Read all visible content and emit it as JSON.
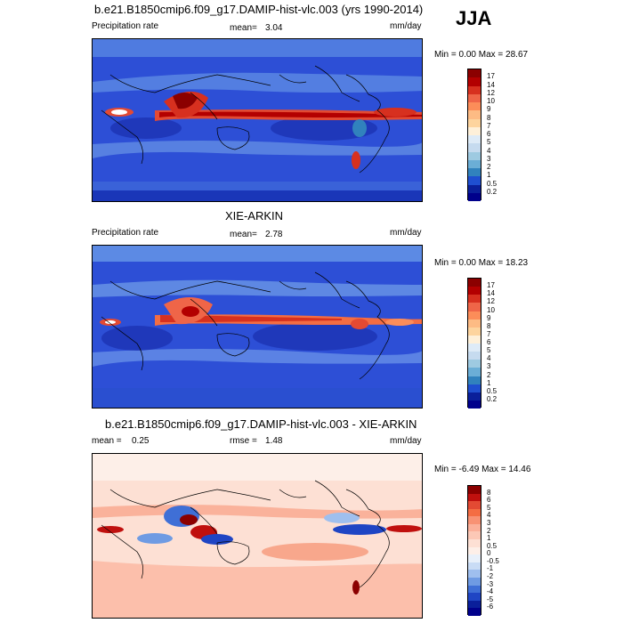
{
  "season": "JJA",
  "panels": [
    {
      "title": "b.e21.B1850cmip6.f09_g17.DAMIP-hist-vlc.003 (yrs 1990-2014)",
      "left_label": "Precipitation rate",
      "mean_label": "mean=",
      "mean_value": "3.04",
      "units": "mm/day",
      "minmax": "Min =   0.00 Max =  28.67",
      "colorbar": {
        "labels": [
          "17",
          "14",
          "12",
          "10",
          "9",
          "8",
          "7",
          "6",
          "5",
          "4",
          "3",
          "2",
          "1",
          "0.5",
          "0.2"
        ],
        "colors": [
          "#8b0000",
          "#b30000",
          "#d7301f",
          "#ef6548",
          "#fc8d59",
          "#fdbb84",
          "#fdd49e",
          "#fef0d9",
          "#deebf7",
          "#c6dbef",
          "#9ecae1",
          "#6baed6",
          "#3182bd",
          "#1f4fd0",
          "#0a1f9a",
          "#00008b"
        ]
      }
    },
    {
      "title": "XIE-ARKIN",
      "left_label": "Precipitation rate",
      "mean_label": "mean=",
      "mean_value": "2.78",
      "units": "mm/day",
      "minmax": "Min =   0.00 Max =  18.23",
      "colorbar": {
        "labels": [
          "17",
          "14",
          "12",
          "10",
          "9",
          "8",
          "7",
          "6",
          "5",
          "4",
          "3",
          "2",
          "1",
          "0.5",
          "0.2"
        ],
        "colors": [
          "#8b0000",
          "#b30000",
          "#d7301f",
          "#ef6548",
          "#fc8d59",
          "#fdbb84",
          "#fdd49e",
          "#fef0d9",
          "#deebf7",
          "#c6dbef",
          "#9ecae1",
          "#6baed6",
          "#3182bd",
          "#1f4fd0",
          "#0a1f9a",
          "#00008b"
        ]
      }
    },
    {
      "title": "b.e21.B1850cmip6.f09_g17.DAMIP-hist-vlc.003 - XIE-ARKIN",
      "left_label": "mean =",
      "mean_label": "rmse =",
      "left_value": "0.25",
      "mean_value": "1.48",
      "units": "mm/day",
      "minmax": "Min =  -6.49 Max =  14.46",
      "colorbar": {
        "labels": [
          "8",
          "6",
          "5",
          "4",
          "3",
          "2",
          "1",
          "0.5",
          "0",
          "-0.5",
          "-1",
          "-2",
          "-3",
          "-4",
          "-5",
          "-6"
        ],
        "colors": [
          "#8b0000",
          "#c0100e",
          "#e34a33",
          "#f46d43",
          "#f89274",
          "#fbb09a",
          "#fcc8b6",
          "#fde0d4",
          "#fdefe8",
          "#e8f0fa",
          "#c9dcf5",
          "#9fbfee",
          "#6f9be3",
          "#3f6fd6",
          "#1f45c4",
          "#0a1f9a",
          "#00008b"
        ]
      }
    }
  ],
  "chart_data": [
    {
      "type": "heatmap",
      "title": "b.e21.B1850cmip6.f09_g17.DAMIP-hist-vlc.003 (yrs 1990-2014)",
      "variable": "Precipitation rate",
      "units": "mm/day",
      "mean": 3.04,
      "min": 0.0,
      "max": 28.67,
      "levels": [
        0.2,
        0.5,
        1,
        2,
        3,
        4,
        5,
        6,
        7,
        8,
        9,
        10,
        12,
        14,
        17
      ]
    },
    {
      "type": "heatmap",
      "title": "XIE-ARKIN",
      "variable": "Precipitation rate",
      "units": "mm/day",
      "mean": 2.78,
      "min": 0.0,
      "max": 18.23,
      "levels": [
        0.2,
        0.5,
        1,
        2,
        3,
        4,
        5,
        6,
        7,
        8,
        9,
        10,
        12,
        14,
        17
      ]
    },
    {
      "type": "heatmap",
      "title": "b.e21.B1850cmip6.f09_g17.DAMIP-hist-vlc.003 - XIE-ARKIN",
      "units": "mm/day",
      "mean": 0.25,
      "rmse": 1.48,
      "min": -6.49,
      "max": 14.46,
      "levels": [
        -6,
        -5,
        -4,
        -3,
        -2,
        -1,
        -0.5,
        0,
        0.5,
        1,
        2,
        3,
        4,
        5,
        6,
        8
      ]
    }
  ]
}
